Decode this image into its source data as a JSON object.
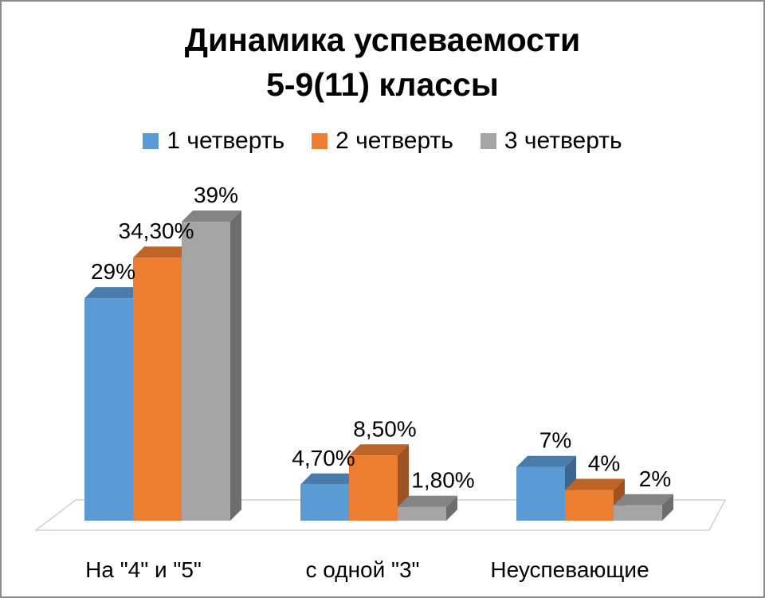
{
  "chart_data": {
    "type": "bar",
    "title": "Динамика успеваемости",
    "subtitle": "5-9(11) классы",
    "categories": [
      "На \"4\" и \"5\"",
      "с одной \"3\"",
      "Неуспевающие"
    ],
    "series": [
      {
        "name": "1 четверть",
        "color": "#5b9bd5",
        "values": [
          29,
          4.7,
          7
        ],
        "labels": [
          "29%",
          "4,70%",
          "7%"
        ]
      },
      {
        "name": "2 четверть",
        "color": "#ed7d31",
        "values": [
          34.3,
          8.5,
          4
        ],
        "labels": [
          "34,30%",
          "8,50%",
          "4%"
        ]
      },
      {
        "name": "3 четверть",
        "color": "#a5a5a5",
        "values": [
          39,
          1.8,
          2
        ],
        "labels": [
          "39%",
          "1,80%",
          "2%"
        ]
      }
    ],
    "ylim": [
      0,
      39
    ],
    "grid": false,
    "legend_position": "top",
    "three_d": true
  }
}
